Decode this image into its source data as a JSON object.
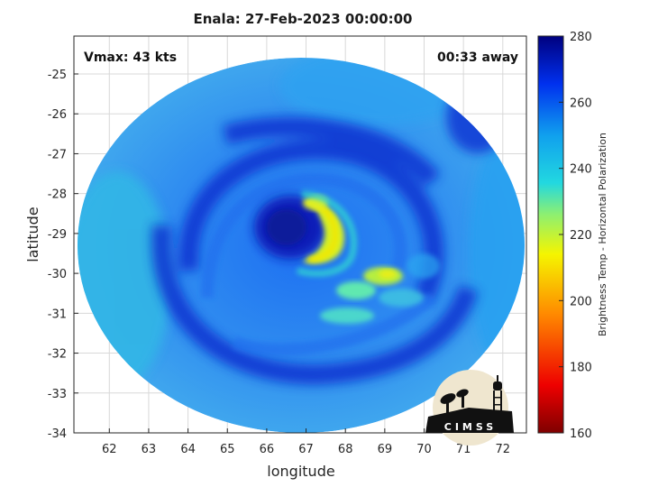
{
  "title": "Enala: 27-Feb-2023 00:00:00",
  "vmax_label": "Vmax: 43 kts",
  "time_label": "00:33 away",
  "xlabel": "longitude",
  "ylabel": "latitude",
  "colorbar_label": "Brightness Temp - Horizontal Polarization",
  "logo_text": "CIMSS",
  "xticks": [
    "62",
    "63",
    "64",
    "65",
    "66",
    "67",
    "68",
    "69",
    "70",
    "71",
    "72"
  ],
  "yticks": [
    "-25",
    "-26",
    "-27",
    "-28",
    "-29",
    "-30",
    "-31",
    "-32",
    "-33",
    "-34"
  ],
  "cbticks": [
    "280",
    "260",
    "240",
    "220",
    "200",
    "180",
    "160"
  ],
  "colors": {
    "c280": "#00007f",
    "c260": "#0033ee",
    "c240": "#10aeea",
    "c220": "#40e8b8",
    "c200": "#f0f000",
    "c180": "#ff4a00",
    "c160": "#7f0000"
  }
}
